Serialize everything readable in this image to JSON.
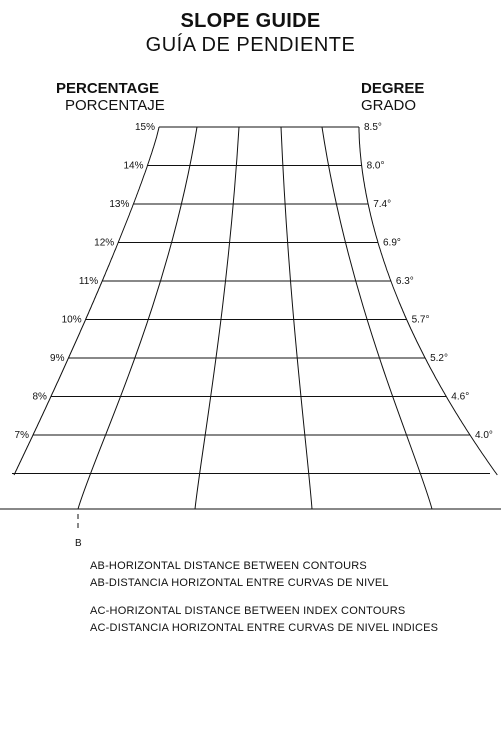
{
  "title": "SLOPE GUIDE",
  "subtitle": "GUÍA DE PENDIENTE",
  "left_header": {
    "label": "PERCENTAGE",
    "sublabel": "PORCENTAJE"
  },
  "right_header": {
    "label": "DEGREE",
    "sublabel": "GRADO"
  },
  "rows": [
    {
      "percent": "15%",
      "degree": "8.5°"
    },
    {
      "percent": "14%",
      "degree": "8.0°"
    },
    {
      "percent": "13%",
      "degree": "7.4°"
    },
    {
      "percent": "12%",
      "degree": "6.9°"
    },
    {
      "percent": "11%",
      "degree": "6.3°"
    },
    {
      "percent": "10%",
      "degree": "5.7°"
    },
    {
      "percent": "9%",
      "degree": "5.2°"
    },
    {
      "percent": "8%",
      "degree": "4.6°"
    },
    {
      "percent": "7%",
      "degree": "4.0°"
    }
  ],
  "point_label": "B",
  "notes": [
    "AB-HORIZONTAL DISTANCE BETWEEN CONTOURS",
    "AB-DISTANCIA HORIZONTAL ENTRE CURVAS DE NIVEL",
    "AC-HORIZONTAL DISTANCE BETWEEN INDEX CONTOURS",
    "AC-DISTANCIA HORIZONTAL ENTRE CURVAS DE NIVEL INDICES"
  ]
}
